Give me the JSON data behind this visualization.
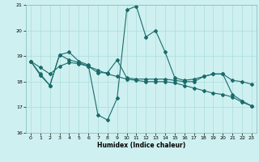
{
  "xlabel": "Humidex (Indice chaleur)",
  "background_color": "#cff0f0",
  "grid_color": "#aadddd",
  "line_color": "#1a6b6b",
  "xlim": [
    -0.5,
    23.5
  ],
  "ylim": [
    16,
    21
  ],
  "yticks": [
    16,
    17,
    18,
    19,
    20,
    21
  ],
  "xticks": [
    0,
    1,
    2,
    3,
    4,
    5,
    6,
    7,
    8,
    9,
    10,
    11,
    12,
    13,
    14,
    15,
    16,
    17,
    18,
    19,
    20,
    21,
    22,
    23
  ],
  "line1_x": [
    0,
    1,
    2,
    3,
    4,
    5,
    6,
    7,
    8,
    9,
    10,
    11,
    12,
    13,
    14,
    15,
    16,
    17,
    18,
    19,
    20,
    21,
    22,
    23
  ],
  "line1_y": [
    18.8,
    18.3,
    17.85,
    19.05,
    19.15,
    18.8,
    18.65,
    16.7,
    16.5,
    17.35,
    20.8,
    20.95,
    19.75,
    20.0,
    19.15,
    18.15,
    18.05,
    18.1,
    18.2,
    18.3,
    18.3,
    17.5,
    17.25,
    17.05
  ],
  "line2_x": [
    0,
    1,
    2,
    3,
    4,
    5,
    6,
    7,
    8,
    9,
    10,
    11,
    12,
    13,
    14,
    15,
    16,
    17,
    18,
    19,
    20,
    21,
    22,
    23
  ],
  "line2_y": [
    18.8,
    18.55,
    18.3,
    18.6,
    18.75,
    18.7,
    18.6,
    18.45,
    18.3,
    18.2,
    18.1,
    18.05,
    18.0,
    18.0,
    18.0,
    17.95,
    17.85,
    17.75,
    17.65,
    17.55,
    17.5,
    17.4,
    17.2,
    17.05
  ],
  "line3_x": [
    0,
    1,
    2,
    3,
    4,
    5,
    6,
    7,
    8,
    9,
    10,
    11,
    12,
    13,
    14,
    15,
    16,
    17,
    18,
    19,
    20,
    21,
    22,
    23
  ],
  "line3_y": [
    18.8,
    18.25,
    17.85,
    19.05,
    18.85,
    18.75,
    18.6,
    18.35,
    18.35,
    18.85,
    18.15,
    18.1,
    18.1,
    18.1,
    18.1,
    18.05,
    18.0,
    18.0,
    18.2,
    18.3,
    18.3,
    18.05,
    18.0,
    17.9
  ]
}
